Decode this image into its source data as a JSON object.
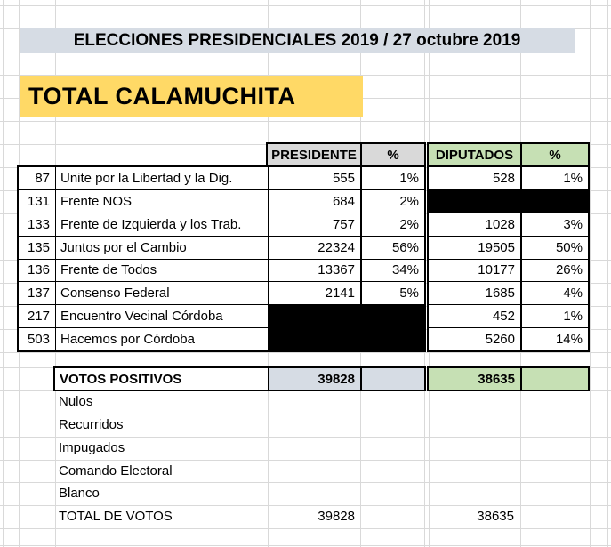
{
  "title": "ELECCIONES PRESIDENCIALES 2019 / 27 octubre 2019",
  "region_title": "TOTAL CALAMUCHITA",
  "table": {
    "headers": {
      "presidente": "PRESIDENTE",
      "presidente_pct": "%",
      "diputados": "DIPUTADOS",
      "diputados_pct": "%"
    },
    "rows": [
      {
        "code": "87",
        "party": "Unite por la Libertad y la Dig.",
        "pres": "555",
        "pres_pct": "1%",
        "dip": "528",
        "dip_pct": "1%",
        "pres_blackout": false,
        "dip_blackout": false
      },
      {
        "code": "131",
        "party": "Frente NOS",
        "pres": "684",
        "pres_pct": "2%",
        "pres_blackout": false,
        "dip_blackout": true
      },
      {
        "code": "133",
        "party": "Frente de Izquierda y los Trab.",
        "pres": "757",
        "pres_pct": "2%",
        "dip": "1028",
        "dip_pct": "3%",
        "pres_blackout": false,
        "dip_blackout": false
      },
      {
        "code": "135",
        "party": "Juntos por el Cambio",
        "pres": "22324",
        "pres_pct": "56%",
        "dip": "19505",
        "dip_pct": "50%",
        "pres_blackout": false,
        "dip_blackout": false
      },
      {
        "code": "136",
        "party": "Frente de Todos",
        "pres": "13367",
        "pres_pct": "34%",
        "dip": "10177",
        "dip_pct": "26%",
        "pres_blackout": false,
        "dip_blackout": false
      },
      {
        "code": "137",
        "party": "Consenso Federal",
        "pres": "2141",
        "pres_pct": "5%",
        "dip": "1685",
        "dip_pct": "4%",
        "pres_blackout": false,
        "dip_blackout": false
      },
      {
        "code": "217",
        "party": "Encuentro Vecinal Córdoba",
        "dip": "452",
        "dip_pct": "1%",
        "pres_blackout": true,
        "dip_blackout": false
      },
      {
        "code": "503",
        "party": "Hacemos por Córdoba",
        "dip": "5260",
        "dip_pct": "14%",
        "pres_blackout": true,
        "dip_blackout": false
      }
    ],
    "positivos": {
      "label": "VOTOS POSITIVOS",
      "pres": "39828",
      "dip": "38635"
    },
    "extra_rows": [
      "Nulos",
      "Recurridos",
      "Impugados",
      "Comando Electoral",
      "Blanco"
    ],
    "total": {
      "label": "TOTAL DE VOTOS",
      "pres": "39828",
      "dip": "38635"
    }
  },
  "colors": {
    "title_bg": "#d6dce4",
    "region_bg": "#ffd966",
    "header_gray": "#d9d9d9",
    "header_green": "#c6e0b4",
    "positivos_pres_bg": "#d6dce4",
    "positivos_dip_bg": "#c6e0b4",
    "blackout": "#000000",
    "gridline": "#d9d9d9"
  }
}
